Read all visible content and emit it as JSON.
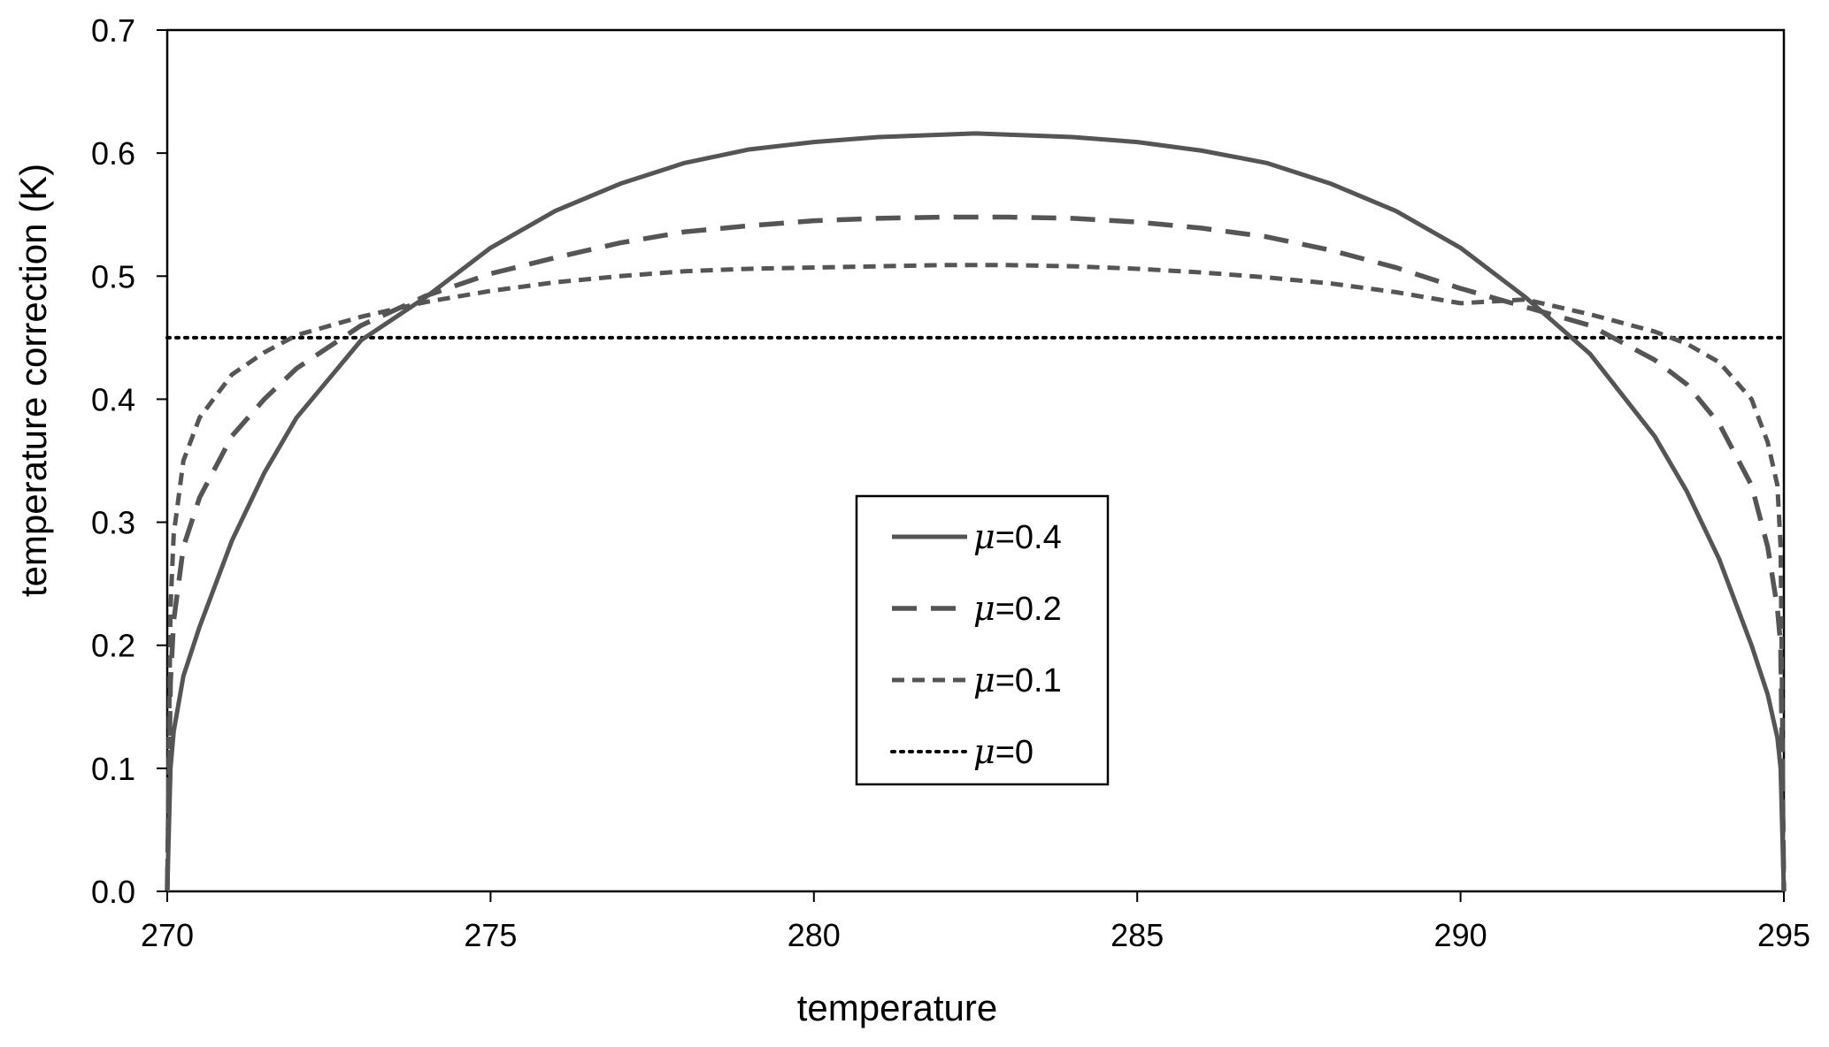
{
  "chart_data": {
    "type": "line",
    "title": "",
    "xlabel": "temperature",
    "ylabel": "temperature correction (K)",
    "xlim": [
      270,
      295
    ],
    "ylim": [
      0,
      0.7
    ],
    "xticks": [
      270,
      275,
      280,
      285,
      290,
      295
    ],
    "yticks": [
      0.0,
      0.1,
      0.2,
      0.3,
      0.4,
      0.5,
      0.6,
      0.7
    ],
    "xtick_labels": [
      "270",
      "275",
      "280",
      "285",
      "290",
      "295"
    ],
    "ytick_labels": [
      "0.0",
      "0.1",
      "0.2",
      "0.3",
      "0.4",
      "0.5",
      "0.6",
      "0.7"
    ],
    "grid": false,
    "legend_position": "center",
    "series": [
      {
        "label_symbol": "μ",
        "label_value": "=0.4",
        "style": "solid",
        "color": "#555555",
        "x": [
          270,
          270.05,
          270.1,
          270.25,
          270.5,
          271,
          271.5,
          272,
          273,
          274,
          275,
          276,
          277,
          278,
          279,
          280,
          281,
          282,
          282.5,
          283,
          284,
          285,
          286,
          287,
          288,
          289,
          290,
          291,
          292,
          293,
          293.5,
          294,
          294.5,
          294.75,
          294.9,
          294.95,
          295
        ],
        "y": [
          0,
          0.1,
          0.13,
          0.175,
          0.215,
          0.285,
          0.34,
          0.385,
          0.448,
          0.483,
          0.523,
          0.553,
          0.575,
          0.592,
          0.603,
          0.609,
          0.613,
          0.615,
          0.616,
          0.615,
          0.613,
          0.609,
          0.602,
          0.592,
          0.575,
          0.553,
          0.523,
          0.483,
          0.437,
          0.37,
          0.325,
          0.27,
          0.2,
          0.16,
          0.125,
          0.1,
          0
        ]
      },
      {
        "label_symbol": "μ",
        "label_value": "=0.2",
        "style": "dashed",
        "color": "#555555",
        "x": [
          270,
          270.05,
          270.1,
          270.25,
          270.5,
          271,
          271.5,
          272,
          273,
          274,
          275,
          276,
          277,
          278,
          279,
          280,
          281,
          282,
          283,
          284,
          285,
          286,
          287,
          288,
          289,
          290,
          291,
          292,
          293,
          293.5,
          294,
          294.5,
          294.75,
          294.9,
          294.95,
          295
        ],
        "y": [
          0,
          0.17,
          0.22,
          0.28,
          0.32,
          0.37,
          0.4,
          0.425,
          0.46,
          0.484,
          0.502,
          0.515,
          0.527,
          0.536,
          0.541,
          0.545,
          0.547,
          0.548,
          0.548,
          0.547,
          0.544,
          0.539,
          0.532,
          0.521,
          0.507,
          0.49,
          0.475,
          0.46,
          0.432,
          0.412,
          0.38,
          0.33,
          0.28,
          0.23,
          0.2,
          0
        ]
      },
      {
        "label_symbol": "μ",
        "label_value": "=0.1",
        "style": "short-dashed",
        "color": "#555555",
        "x": [
          270,
          270.05,
          270.1,
          270.25,
          270.5,
          271,
          271.5,
          272,
          273,
          274,
          275,
          276,
          277,
          278,
          279,
          280,
          281,
          282,
          283,
          284,
          285,
          286,
          287,
          288,
          289,
          290,
          291,
          292,
          293,
          293.5,
          294,
          294.5,
          294.75,
          294.9,
          294.95,
          295
        ],
        "y": [
          0,
          0.23,
          0.29,
          0.35,
          0.385,
          0.42,
          0.438,
          0.452,
          0.467,
          0.479,
          0.488,
          0.495,
          0.5,
          0.504,
          0.506,
          0.507,
          0.508,
          0.509,
          0.509,
          0.508,
          0.506,
          0.503,
          0.499,
          0.494,
          0.487,
          0.478,
          0.481,
          0.469,
          0.455,
          0.445,
          0.43,
          0.4,
          0.365,
          0.33,
          0.28,
          0
        ]
      },
      {
        "label_symbol": "μ",
        "label_value": "=0",
        "style": "dotted",
        "color": "#000000",
        "x": [
          270,
          295
        ],
        "y": [
          0.45,
          0.45
        ]
      }
    ]
  }
}
